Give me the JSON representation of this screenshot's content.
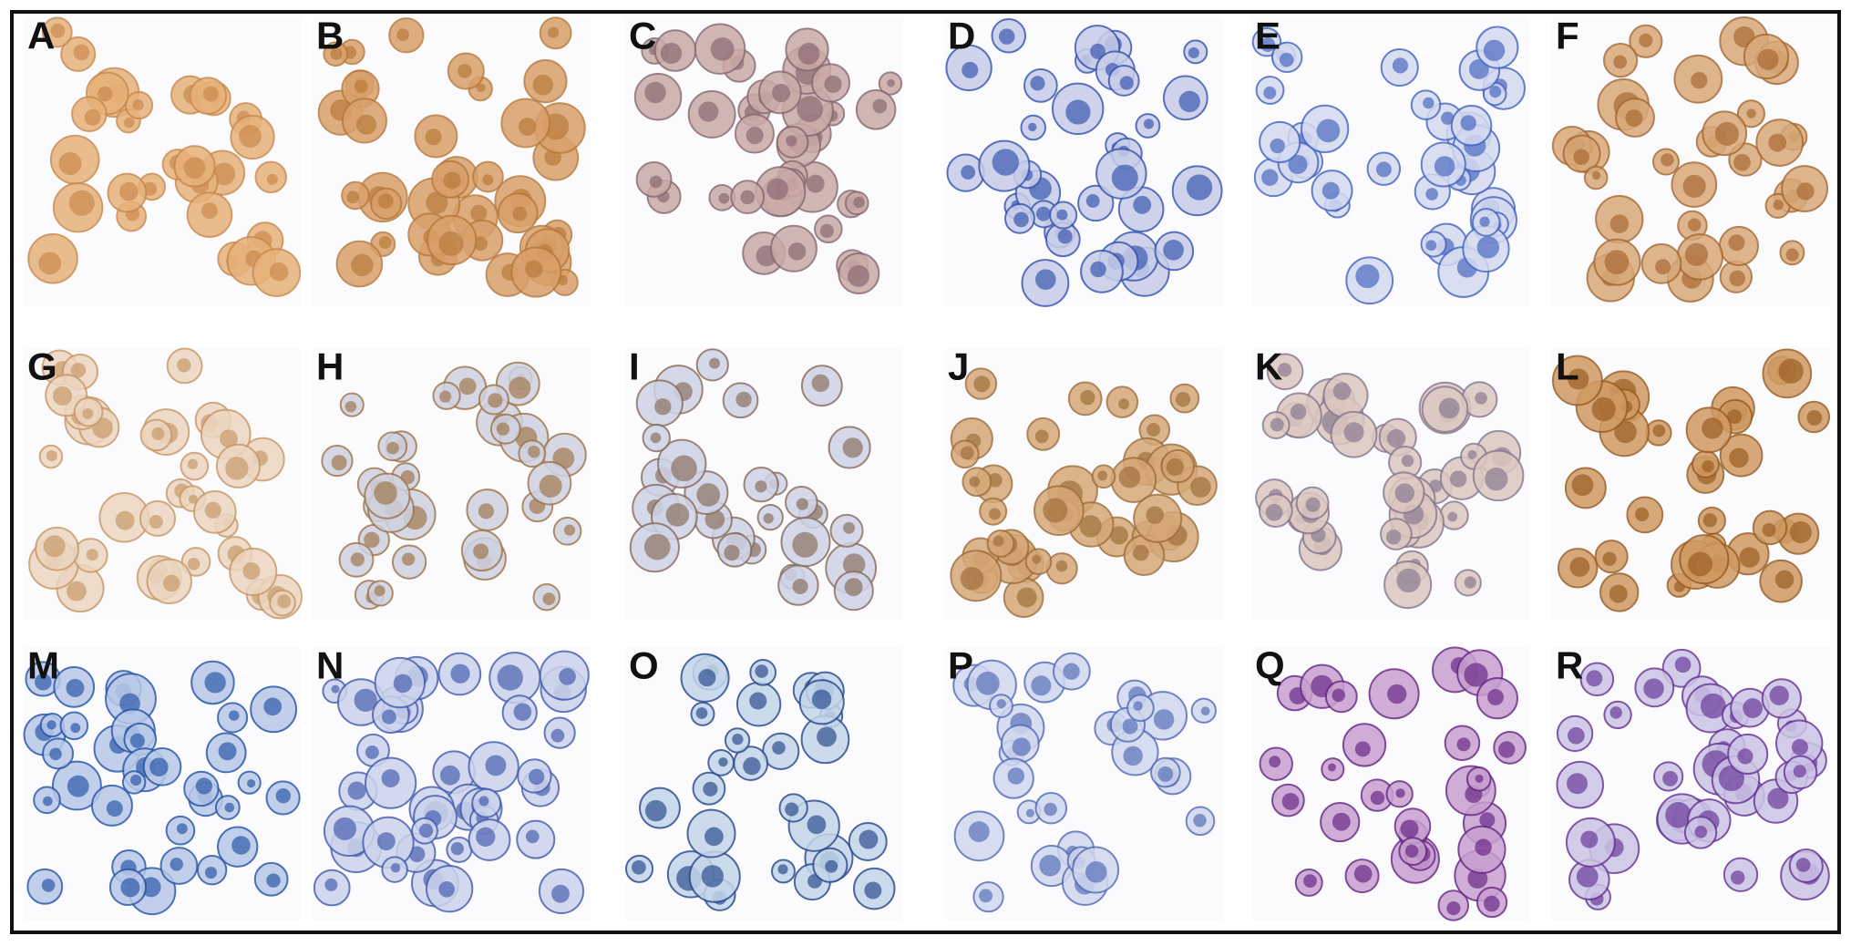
{
  "panels": [
    {
      "label": "A"
    },
    {
      "label": "B"
    },
    {
      "label": "C"
    },
    {
      "label": "D"
    },
    {
      "label": "E"
    },
    {
      "label": "F"
    },
    {
      "label": "G"
    },
    {
      "label": "H"
    },
    {
      "label": "I"
    },
    {
      "label": "J"
    },
    {
      "label": "K"
    },
    {
      "label": "L"
    },
    {
      "label": "M"
    },
    {
      "label": "N"
    },
    {
      "label": "O"
    },
    {
      "label": "P"
    },
    {
      "label": "Q"
    },
    {
      "label": "R"
    }
  ]
}
